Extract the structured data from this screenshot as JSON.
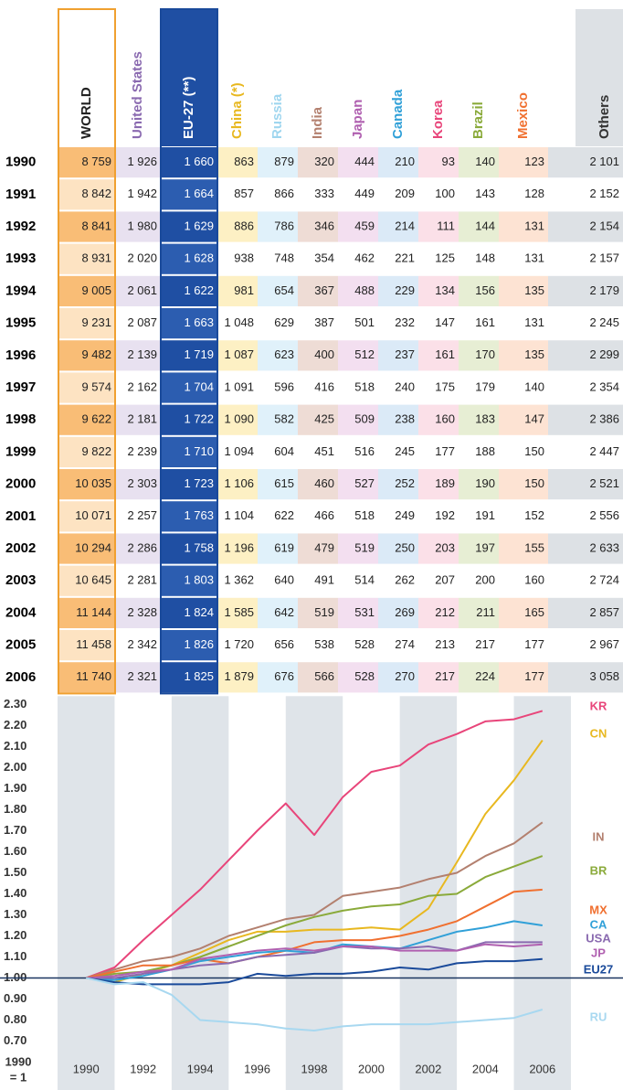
{
  "table": {
    "columns": [
      "WORLD",
      "United States",
      "EU-27 (**)",
      "China (*)",
      "Russia",
      "India",
      "Japan",
      "Canada",
      "Korea",
      "Brazil",
      "Mexico",
      "Others"
    ],
    "rows": [
      {
        "year": "1990",
        "cells": [
          "8 759",
          "1 926",
          "1 660",
          "863",
          "879",
          "320",
          "444",
          "210",
          "93",
          "140",
          "123",
          "2 101"
        ]
      },
      {
        "year": "1991",
        "cells": [
          "8 842",
          "1 942",
          "1 664",
          "857",
          "866",
          "333",
          "449",
          "209",
          "100",
          "143",
          "128",
          "2 152"
        ]
      },
      {
        "year": "1992",
        "cells": [
          "8 841",
          "1 980",
          "1 629",
          "886",
          "786",
          "346",
          "459",
          "214",
          "111",
          "144",
          "131",
          "2 154"
        ]
      },
      {
        "year": "1993",
        "cells": [
          "8 931",
          "2 020",
          "1 628",
          "938",
          "748",
          "354",
          "462",
          "221",
          "125",
          "148",
          "131",
          "2 157"
        ]
      },
      {
        "year": "1994",
        "cells": [
          "9 005",
          "2 061",
          "1 622",
          "981",
          "654",
          "367",
          "488",
          "229",
          "134",
          "156",
          "135",
          "2 179"
        ]
      },
      {
        "year": "1995",
        "cells": [
          "9 231",
          "2 087",
          "1 663",
          "1 048",
          "629",
          "387",
          "501",
          "232",
          "147",
          "161",
          "131",
          "2 245"
        ]
      },
      {
        "year": "1996",
        "cells": [
          "9 482",
          "2 139",
          "1 719",
          "1 087",
          "623",
          "400",
          "512",
          "237",
          "161",
          "170",
          "135",
          "2 299"
        ]
      },
      {
        "year": "1997",
        "cells": [
          "9 574",
          "2 162",
          "1 704",
          "1 091",
          "596",
          "416",
          "518",
          "240",
          "175",
          "179",
          "140",
          "2 354"
        ]
      },
      {
        "year": "1998",
        "cells": [
          "9 622",
          "2 181",
          "1 722",
          "1 090",
          "582",
          "425",
          "509",
          "238",
          "160",
          "183",
          "147",
          "2 386"
        ]
      },
      {
        "year": "1999",
        "cells": [
          "9 822",
          "2 239",
          "1 710",
          "1 094",
          "604",
          "451",
          "516",
          "245",
          "177",
          "188",
          "150",
          "2 447"
        ]
      },
      {
        "year": "2000",
        "cells": [
          "10 035",
          "2 303",
          "1 723",
          "1 106",
          "615",
          "460",
          "527",
          "252",
          "189",
          "190",
          "150",
          "2 521"
        ]
      },
      {
        "year": "2001",
        "cells": [
          "10 071",
          "2 257",
          "1 763",
          "1 104",
          "622",
          "466",
          "518",
          "249",
          "192",
          "191",
          "152",
          "2 556"
        ]
      },
      {
        "year": "2002",
        "cells": [
          "10 294",
          "2 286",
          "1 758",
          "1 196",
          "619",
          "479",
          "519",
          "250",
          "203",
          "197",
          "155",
          "2 633"
        ]
      },
      {
        "year": "2003",
        "cells": [
          "10 645",
          "2 281",
          "1 803",
          "1 362",
          "640",
          "491",
          "514",
          "262",
          "207",
          "200",
          "160",
          "2 724"
        ]
      },
      {
        "year": "2004",
        "cells": [
          "11 144",
          "2 328",
          "1 824",
          "1 585",
          "642",
          "519",
          "531",
          "269",
          "212",
          "211",
          "165",
          "2 857"
        ]
      },
      {
        "year": "2005",
        "cells": [
          "11 458",
          "2 342",
          "1 826",
          "1 720",
          "656",
          "538",
          "528",
          "274",
          "213",
          "217",
          "177",
          "2 967"
        ]
      },
      {
        "year": "2006",
        "cells": [
          "11 740",
          "2 321",
          "1 825",
          "1 879",
          "676",
          "566",
          "528",
          "270",
          "217",
          "224",
          "177",
          "3 058"
        ]
      }
    ]
  },
  "chart_data": {
    "type": "line",
    "y_note": [
      "1990",
      "= 1"
    ],
    "x": [
      1990,
      1991,
      1992,
      1993,
      1994,
      1995,
      1996,
      1997,
      1998,
      1999,
      2000,
      2001,
      2002,
      2003,
      2004,
      2005,
      2006
    ],
    "xlim": [
      1989,
      2007
    ],
    "xticks": [
      1990,
      1992,
      1994,
      1996,
      1998,
      2000,
      2002,
      2004,
      2006
    ],
    "ylim": [
      0.65,
      2.34
    ],
    "yticks": [
      {
        "value": 2.3,
        "label": "2.30"
      },
      {
        "value": 2.2,
        "label": "2.20"
      },
      {
        "value": 2.1,
        "label": "2.10"
      },
      {
        "value": 2.0,
        "label": "2.00"
      },
      {
        "value": 1.9,
        "label": "1.90"
      },
      {
        "value": 1.8,
        "label": "1.80"
      },
      {
        "value": 1.7,
        "label": "1.70"
      },
      {
        "value": 1.6,
        "label": "1.60"
      },
      {
        "value": 1.5,
        "label": "1.50"
      },
      {
        "value": 1.4,
        "label": "1.40"
      },
      {
        "value": 1.3,
        "label": "1.30"
      },
      {
        "value": 1.2,
        "label": "1.20"
      },
      {
        "value": 1.1,
        "label": "1.10"
      },
      {
        "value": 1.0,
        "label": "1.00"
      },
      {
        "value": 0.9,
        "label": "0.90"
      },
      {
        "value": 0.8,
        "label": "0.80"
      },
      {
        "value": 0.7,
        "label": "0.70"
      }
    ],
    "reference_line": 1.0,
    "grid": false,
    "series": [
      {
        "name": "KR",
        "color": "#e8457a",
        "values": [
          1.0,
          1.05,
          1.18,
          1.3,
          1.42,
          1.56,
          1.7,
          1.83,
          1.68,
          1.86,
          1.98,
          2.01,
          2.11,
          2.16,
          2.22,
          2.23,
          2.27
        ]
      },
      {
        "name": "CN",
        "color": "#e8b820",
        "values": [
          1.0,
          0.98,
          1.02,
          1.06,
          1.12,
          1.18,
          1.22,
          1.22,
          1.23,
          1.23,
          1.24,
          1.23,
          1.33,
          1.55,
          1.78,
          1.94,
          2.13
        ]
      },
      {
        "name": "IN",
        "color": "#b3806f",
        "values": [
          1.0,
          1.04,
          1.08,
          1.1,
          1.14,
          1.2,
          1.24,
          1.28,
          1.3,
          1.39,
          1.41,
          1.43,
          1.47,
          1.5,
          1.58,
          1.64,
          1.74
        ]
      },
      {
        "name": "BR",
        "color": "#8aaa3a",
        "values": [
          1.0,
          1.02,
          1.03,
          1.06,
          1.1,
          1.15,
          1.2,
          1.25,
          1.29,
          1.32,
          1.34,
          1.35,
          1.39,
          1.4,
          1.48,
          1.53,
          1.58
        ]
      },
      {
        "name": "MX",
        "color": "#f07030",
        "values": [
          1.0,
          1.03,
          1.06,
          1.06,
          1.09,
          1.07,
          1.1,
          1.13,
          1.17,
          1.18,
          1.18,
          1.2,
          1.23,
          1.27,
          1.34,
          1.41,
          1.42
        ]
      },
      {
        "name": "CA",
        "color": "#30a0d8",
        "values": [
          1.0,
          0.99,
          1.01,
          1.04,
          1.08,
          1.1,
          1.12,
          1.13,
          1.12,
          1.16,
          1.15,
          1.14,
          1.18,
          1.22,
          1.24,
          1.27,
          1.25
        ]
      },
      {
        "name": "USA",
        "color": "#8a6ab0",
        "values": [
          1.0,
          1.0,
          1.02,
          1.04,
          1.06,
          1.07,
          1.1,
          1.11,
          1.12,
          1.15,
          1.14,
          1.14,
          1.15,
          1.13,
          1.17,
          1.17,
          1.17
        ]
      },
      {
        "name": "JP",
        "color": "#b060b0",
        "values": [
          1.0,
          1.01,
          1.03,
          1.04,
          1.09,
          1.11,
          1.13,
          1.14,
          1.13,
          1.15,
          1.15,
          1.13,
          1.13,
          1.13,
          1.16,
          1.15,
          1.16
        ]
      },
      {
        "name": "EU27",
        "color": "#1a4a9a",
        "values": [
          1.0,
          0.98,
          0.97,
          0.97,
          0.97,
          0.98,
          1.02,
          1.01,
          1.02,
          1.02,
          1.03,
          1.05,
          1.04,
          1.07,
          1.08,
          1.08,
          1.09
        ]
      },
      {
        "name": "RU",
        "color": "#a8d8f0",
        "values": [
          1.0,
          0.97,
          0.98,
          0.92,
          0.8,
          0.79,
          0.78,
          0.76,
          0.75,
          0.77,
          0.78,
          0.78,
          0.78,
          0.79,
          0.8,
          0.81,
          0.85
        ]
      }
    ]
  }
}
